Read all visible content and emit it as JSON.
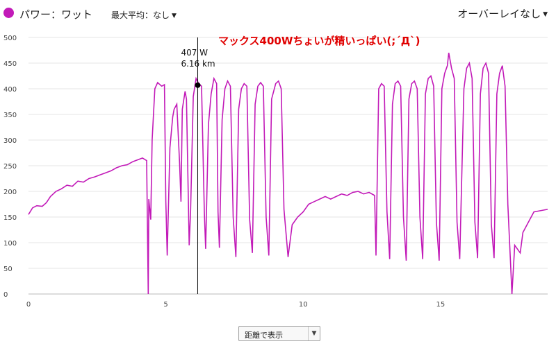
{
  "header": {
    "series_label": "パワー：ワット",
    "series_color": "#c21ab8",
    "avg_label": "最大平均：なし",
    "overlay_label": "オーバーレイなし"
  },
  "footer": {
    "xaxis_mode": "距離で表示"
  },
  "annotation": {
    "text": "マックス400Wちょいが精いっぱい(;´Д`)",
    "color": "#e00000"
  },
  "tooltip": {
    "value": "407 W",
    "distance": "6.16 km",
    "x": 6.16,
    "y": 407
  },
  "chart_data": {
    "type": "line",
    "x_range": [
      0,
      18.9
    ],
    "y_range": [
      0,
      500
    ],
    "y_ticks": [
      0,
      50,
      100,
      150,
      200,
      250,
      300,
      350,
      400,
      450,
      500
    ],
    "x_ticks": [
      0,
      5,
      10,
      15
    ],
    "grid": true,
    "series": [
      {
        "color": "#c21ab8",
        "points": [
          [
            0,
            155
          ],
          [
            0.15,
            168
          ],
          [
            0.3,
            172
          ],
          [
            0.5,
            171
          ],
          [
            0.65,
            178
          ],
          [
            0.8,
            190
          ],
          [
            1.0,
            200
          ],
          [
            1.2,
            205
          ],
          [
            1.4,
            212
          ],
          [
            1.6,
            210
          ],
          [
            1.8,
            220
          ],
          [
            2.0,
            218
          ],
          [
            2.2,
            225
          ],
          [
            2.4,
            228
          ],
          [
            2.6,
            232
          ],
          [
            2.8,
            236
          ],
          [
            3.0,
            240
          ],
          [
            3.2,
            246
          ],
          [
            3.4,
            250
          ],
          [
            3.6,
            252
          ],
          [
            3.8,
            258
          ],
          [
            4.0,
            262
          ],
          [
            4.15,
            265
          ],
          [
            4.3,
            260
          ],
          [
            4.36,
            0
          ],
          [
            4.38,
            185
          ],
          [
            4.45,
            145
          ],
          [
            4.5,
            300
          ],
          [
            4.6,
            400
          ],
          [
            4.7,
            412
          ],
          [
            4.85,
            405
          ],
          [
            4.95,
            408
          ],
          [
            5.0,
            180
          ],
          [
            5.05,
            75
          ],
          [
            5.15,
            285
          ],
          [
            5.25,
            345
          ],
          [
            5.3,
            360
          ],
          [
            5.4,
            370
          ],
          [
            5.5,
            255
          ],
          [
            5.55,
            180
          ],
          [
            5.6,
            360
          ],
          [
            5.7,
            395
          ],
          [
            5.75,
            380
          ],
          [
            5.85,
            95
          ],
          [
            5.9,
            160
          ],
          [
            6.0,
            385
          ],
          [
            6.1,
            420
          ],
          [
            6.2,
            410
          ],
          [
            6.3,
            405
          ],
          [
            6.4,
            160
          ],
          [
            6.45,
            88
          ],
          [
            6.55,
            330
          ],
          [
            6.65,
            390
          ],
          [
            6.75,
            420
          ],
          [
            6.85,
            410
          ],
          [
            6.9,
            160
          ],
          [
            6.95,
            90
          ],
          [
            7.05,
            340
          ],
          [
            7.15,
            400
          ],
          [
            7.25,
            415
          ],
          [
            7.35,
            405
          ],
          [
            7.45,
            150
          ],
          [
            7.55,
            72
          ],
          [
            7.65,
            360
          ],
          [
            7.75,
            400
          ],
          [
            7.85,
            410
          ],
          [
            7.95,
            405
          ],
          [
            8.05,
            145
          ],
          [
            8.15,
            80
          ],
          [
            8.25,
            370
          ],
          [
            8.35,
            405
          ],
          [
            8.45,
            412
          ],
          [
            8.55,
            405
          ],
          [
            8.65,
            150
          ],
          [
            8.75,
            75
          ],
          [
            8.85,
            380
          ],
          [
            9.0,
            410
          ],
          [
            9.1,
            415
          ],
          [
            9.2,
            400
          ],
          [
            9.3,
            165
          ],
          [
            9.45,
            72
          ],
          [
            9.6,
            135
          ],
          [
            9.8,
            150
          ],
          [
            10.0,
            160
          ],
          [
            10.2,
            175
          ],
          [
            10.4,
            180
          ],
          [
            10.6,
            185
          ],
          [
            10.8,
            190
          ],
          [
            11.0,
            185
          ],
          [
            11.2,
            190
          ],
          [
            11.4,
            195
          ],
          [
            11.6,
            192
          ],
          [
            11.8,
            198
          ],
          [
            12.0,
            200
          ],
          [
            12.2,
            195
          ],
          [
            12.4,
            198
          ],
          [
            12.6,
            192
          ],
          [
            12.65,
            75
          ],
          [
            12.75,
            400
          ],
          [
            12.85,
            410
          ],
          [
            12.95,
            405
          ],
          [
            13.05,
            160
          ],
          [
            13.15,
            68
          ],
          [
            13.25,
            370
          ],
          [
            13.35,
            410
          ],
          [
            13.45,
            415
          ],
          [
            13.55,
            405
          ],
          [
            13.65,
            150
          ],
          [
            13.75,
            65
          ],
          [
            13.85,
            380
          ],
          [
            13.95,
            410
          ],
          [
            14.05,
            415
          ],
          [
            14.15,
            400
          ],
          [
            14.25,
            150
          ],
          [
            14.35,
            68
          ],
          [
            14.45,
            390
          ],
          [
            14.55,
            420
          ],
          [
            14.65,
            425
          ],
          [
            14.75,
            405
          ],
          [
            14.85,
            140
          ],
          [
            14.95,
            65
          ],
          [
            15.05,
            400
          ],
          [
            15.15,
            430
          ],
          [
            15.25,
            445
          ],
          [
            15.3,
            470
          ],
          [
            15.4,
            440
          ],
          [
            15.5,
            420
          ],
          [
            15.6,
            140
          ],
          [
            15.7,
            68
          ],
          [
            15.85,
            400
          ],
          [
            15.95,
            440
          ],
          [
            16.05,
            450
          ],
          [
            16.15,
            420
          ],
          [
            16.25,
            140
          ],
          [
            16.35,
            70
          ],
          [
            16.45,
            390
          ],
          [
            16.55,
            440
          ],
          [
            16.65,
            450
          ],
          [
            16.75,
            430
          ],
          [
            16.85,
            135
          ],
          [
            16.95,
            70
          ],
          [
            17.05,
            390
          ],
          [
            17.15,
            430
          ],
          [
            17.25,
            445
          ],
          [
            17.35,
            405
          ],
          [
            17.45,
            175
          ],
          [
            17.55,
            60
          ],
          [
            17.6,
            0
          ],
          [
            17.7,
            95
          ],
          [
            17.9,
            80
          ],
          [
            18.0,
            120
          ],
          [
            18.2,
            140
          ],
          [
            18.4,
            160
          ],
          [
            18.6,
            162
          ],
          [
            18.9,
            165
          ]
        ]
      }
    ]
  }
}
